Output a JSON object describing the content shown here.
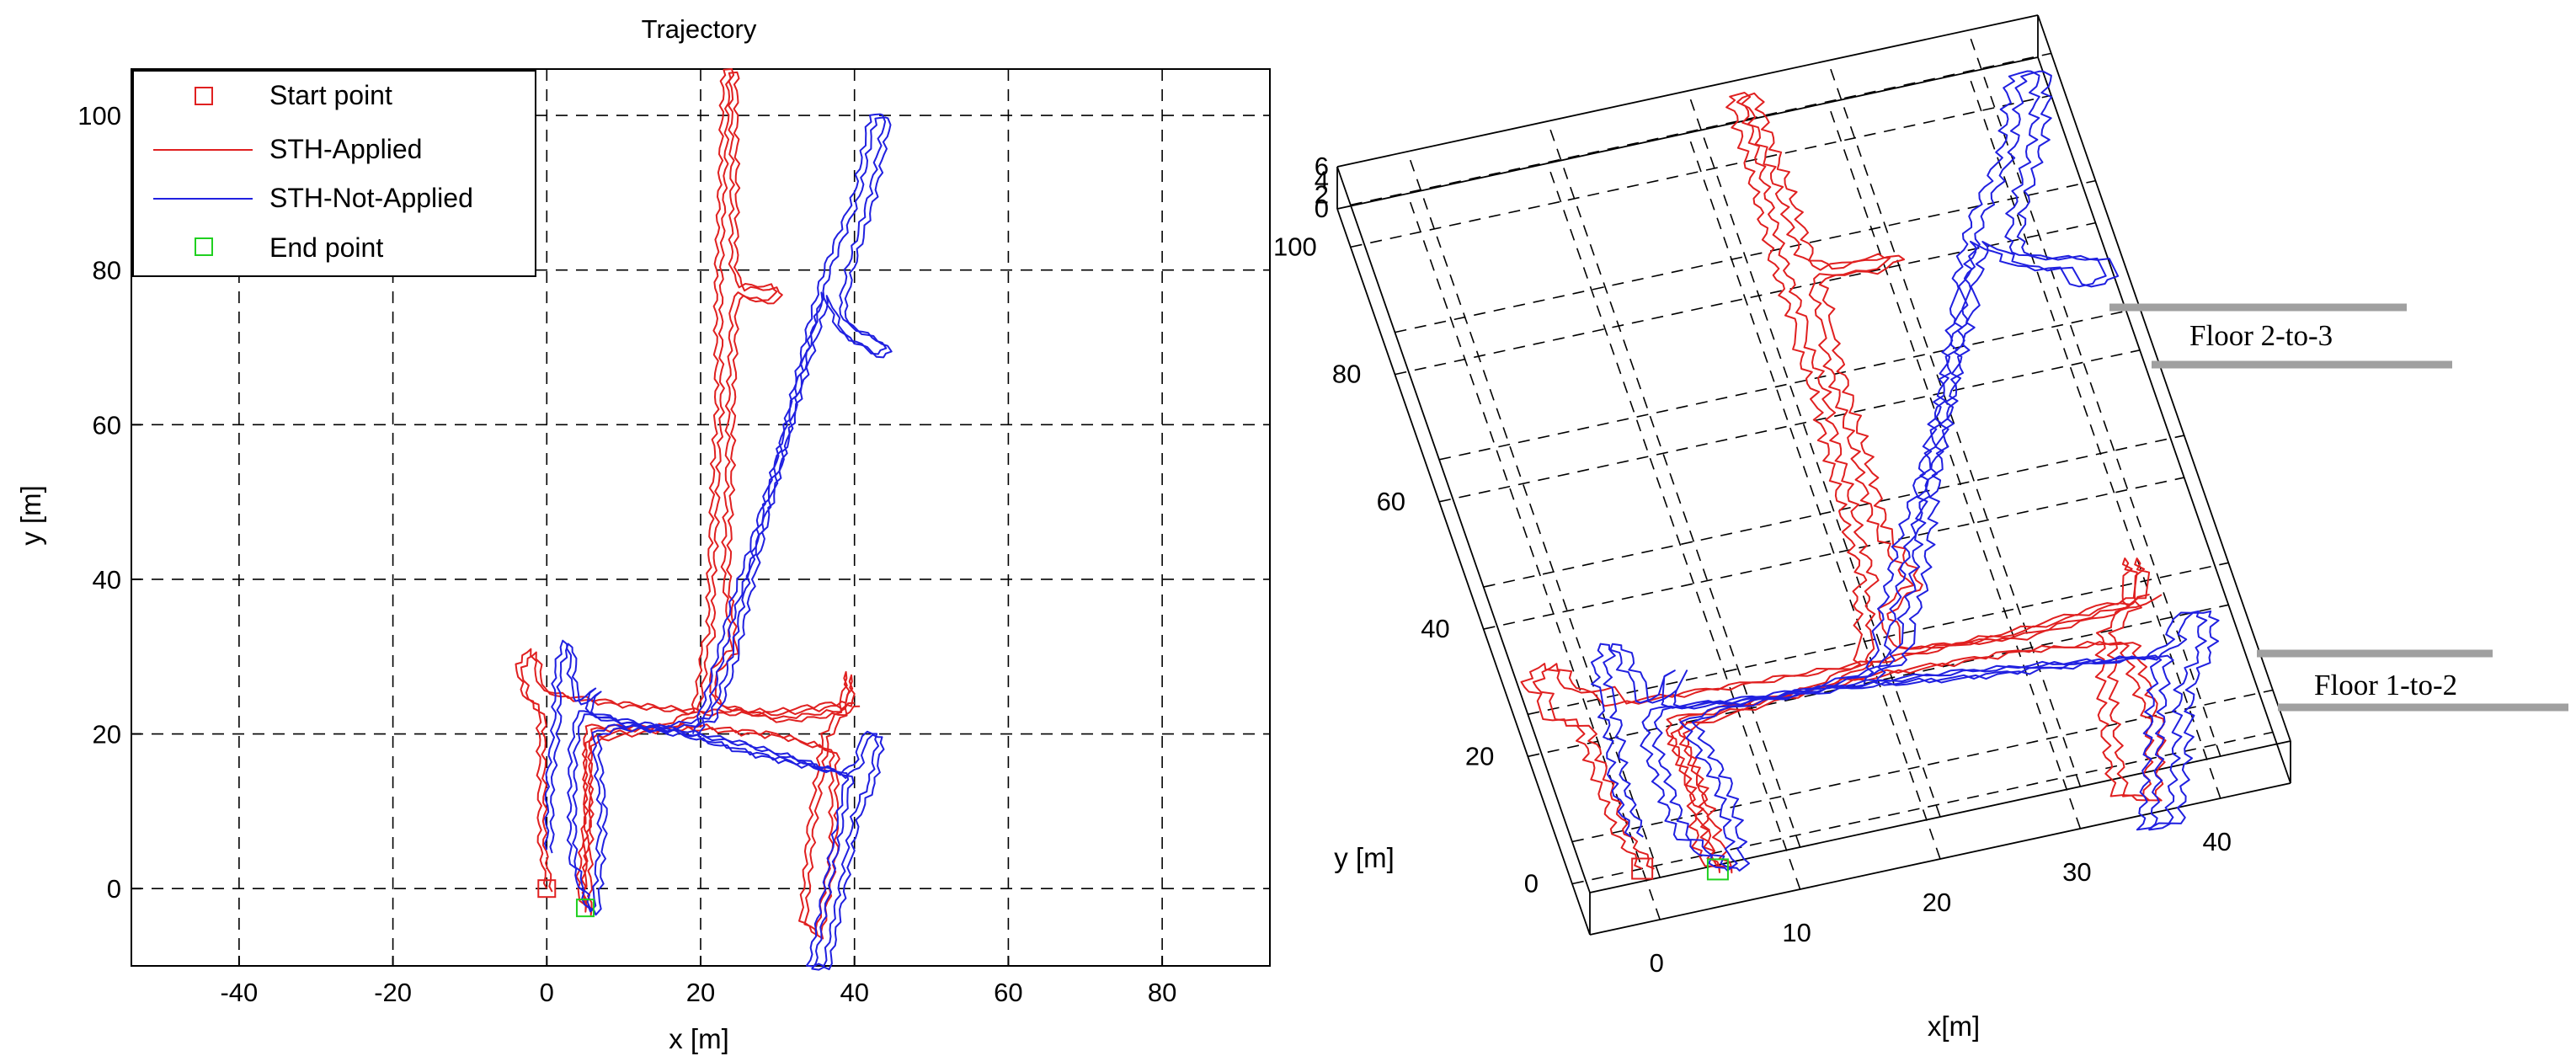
{
  "chart_data": [
    {
      "type": "line",
      "title": "Trajectory",
      "xlabel": "x [m]",
      "ylabel": "y [m]",
      "xlim": [
        -54,
        94
      ],
      "ylim": [
        -10,
        106
      ],
      "xticks": [
        -40,
        -20,
        0,
        20,
        40,
        60,
        80
      ],
      "yticks": [
        0,
        20,
        40,
        60,
        80,
        100
      ],
      "grid": true,
      "legend_position": "top-left",
      "legend": [
        {
          "label": "Start point",
          "type": "square",
          "color": "#e02020"
        },
        {
          "label": "STH-Applied",
          "type": "line",
          "color": "#e02020"
        },
        {
          "label": "STH-Not-Applied",
          "type": "line",
          "color": "#2020e0"
        },
        {
          "label": "End point",
          "type": "square",
          "color": "#20d020"
        }
      ],
      "markers": [
        {
          "name": "Start point",
          "x": 0,
          "y": 0,
          "color": "#e02020"
        },
        {
          "name": "End point",
          "x": 5,
          "y": -2.5,
          "color": "#20d020"
        }
      ],
      "series": [
        {
          "name": "STH-Applied",
          "color": "#e02020",
          "points": [
            [
              0,
              0
            ],
            [
              -1,
              6
            ],
            [
              -1,
              17
            ],
            [
              -1,
              23
            ],
            [
              -3,
              25
            ],
            [
              -4,
              29
            ],
            [
              -2,
              31
            ],
            [
              -1,
              26
            ],
            [
              2,
              25
            ],
            [
              10,
              24
            ],
            [
              20,
              23
            ],
            [
              30,
              23
            ],
            [
              37,
              24
            ],
            [
              39,
              24
            ],
            [
              39,
              28
            ],
            [
              38,
              23
            ],
            [
              36,
              20
            ],
            [
              34,
              8
            ],
            [
              33,
              -4
            ],
            [
              35,
              -6
            ],
            [
              37,
              5
            ],
            [
              37,
              18
            ],
            [
              30,
              20
            ],
            [
              20,
              21
            ],
            [
              10,
              21
            ],
            [
              5,
              21
            ],
            [
              5,
              10
            ],
            [
              4,
              0
            ],
            [
              5,
              -3
            ],
            [
              5,
              6
            ],
            [
              5,
              19
            ],
            [
              8,
              20
            ],
            [
              15,
              21
            ],
            [
              19,
              23
            ],
            [
              20,
              29
            ],
            [
              20,
              31
            ],
            [
              21,
              33
            ],
            [
              21,
              40
            ],
            [
              22,
              62
            ],
            [
              22,
              80
            ],
            [
              23,
              106
            ],
            [
              24,
              106
            ],
            [
              24,
              80
            ],
            [
              25,
              78
            ],
            [
              29,
              78
            ],
            [
              30,
              77
            ],
            [
              28,
              76
            ],
            [
              25,
              77
            ],
            [
              24,
              76
            ],
            [
              23,
              40
            ],
            [
              24,
              31
            ],
            [
              22,
              29
            ],
            [
              21,
              27
            ],
            [
              22,
              24
            ],
            [
              30,
              22
            ],
            [
              38,
              23
            ],
            [
              40,
              24
            ]
          ]
        },
        {
          "name": "STH-Not-Applied",
          "color": "#2020e0",
          "points": [
            [
              0,
              5
            ],
            [
              0,
              14
            ],
            [
              1,
              22
            ],
            [
              1,
              28
            ],
            [
              2,
              32
            ],
            [
              3,
              31
            ],
            [
              3,
              27
            ],
            [
              4,
              24
            ],
            [
              6,
              26
            ],
            [
              5,
              23
            ],
            [
              9,
              22
            ],
            [
              15,
              21
            ],
            [
              20,
              20
            ],
            [
              25,
              19
            ],
            [
              32,
              17
            ],
            [
              38,
              15
            ],
            [
              40,
              16
            ],
            [
              41,
              20
            ],
            [
              43,
              20
            ],
            [
              42,
              14
            ],
            [
              40,
              10
            ],
            [
              38,
              0
            ],
            [
              36,
              -10
            ],
            [
              34,
              -10
            ],
            [
              36,
              0
            ],
            [
              38,
              10
            ],
            [
              39,
              15
            ],
            [
              34,
              16
            ],
            [
              25,
              18
            ],
            [
              18,
              20
            ],
            [
              12,
              21
            ],
            [
              8,
              22
            ],
            [
              4,
              23
            ],
            [
              3,
              18
            ],
            [
              3,
              10
            ],
            [
              3,
              4
            ],
            [
              5,
              -2
            ],
            [
              6,
              -3
            ],
            [
              7,
              10
            ],
            [
              6,
              20
            ],
            [
              8,
              21
            ],
            [
              15,
              21
            ],
            [
              21,
              22
            ],
            [
              22,
              24
            ],
            [
              24,
              30
            ],
            [
              25,
              35
            ],
            [
              28,
              48
            ],
            [
              31,
              60
            ],
            [
              34,
              73
            ],
            [
              36,
              80
            ],
            [
              40,
              90
            ],
            [
              42,
              100
            ],
            [
              44,
              100
            ],
            [
              42,
              90
            ],
            [
              39,
              80
            ],
            [
              38,
              75
            ],
            [
              39,
              73
            ],
            [
              43,
              71
            ],
            [
              44,
              70
            ],
            [
              43,
              69
            ],
            [
              38,
              72
            ],
            [
              36,
              77
            ],
            [
              33,
              67
            ],
            [
              30,
              56
            ],
            [
              26,
              43
            ],
            [
              24,
              37
            ],
            [
              21,
              26
            ],
            [
              19,
              20
            ]
          ]
        }
      ]
    },
    {
      "type": "line",
      "title": "",
      "projection": "3d",
      "xlabel": "x[m]",
      "ylabel": "y [m]",
      "xlim": [
        -5,
        45
      ],
      "ylim": [
        -8,
        106
      ],
      "zlim": [
        0,
        6
      ],
      "xticks": [
        0,
        10,
        20,
        30,
        40
      ],
      "yticks": [
        0,
        20,
        40,
        60,
        80,
        100
      ],
      "zticks": [
        0,
        2,
        4,
        6
      ],
      "grid": true,
      "annotations": [
        "Floor 2-to-3",
        "Floor 1-to-2"
      ],
      "markers": [
        {
          "name": "Start point",
          "x": 0,
          "y": 0,
          "color": "#e02020"
        },
        {
          "name": "End point",
          "x": 5,
          "y": -2.5,
          "color": "#20d020"
        }
      ]
    }
  ]
}
